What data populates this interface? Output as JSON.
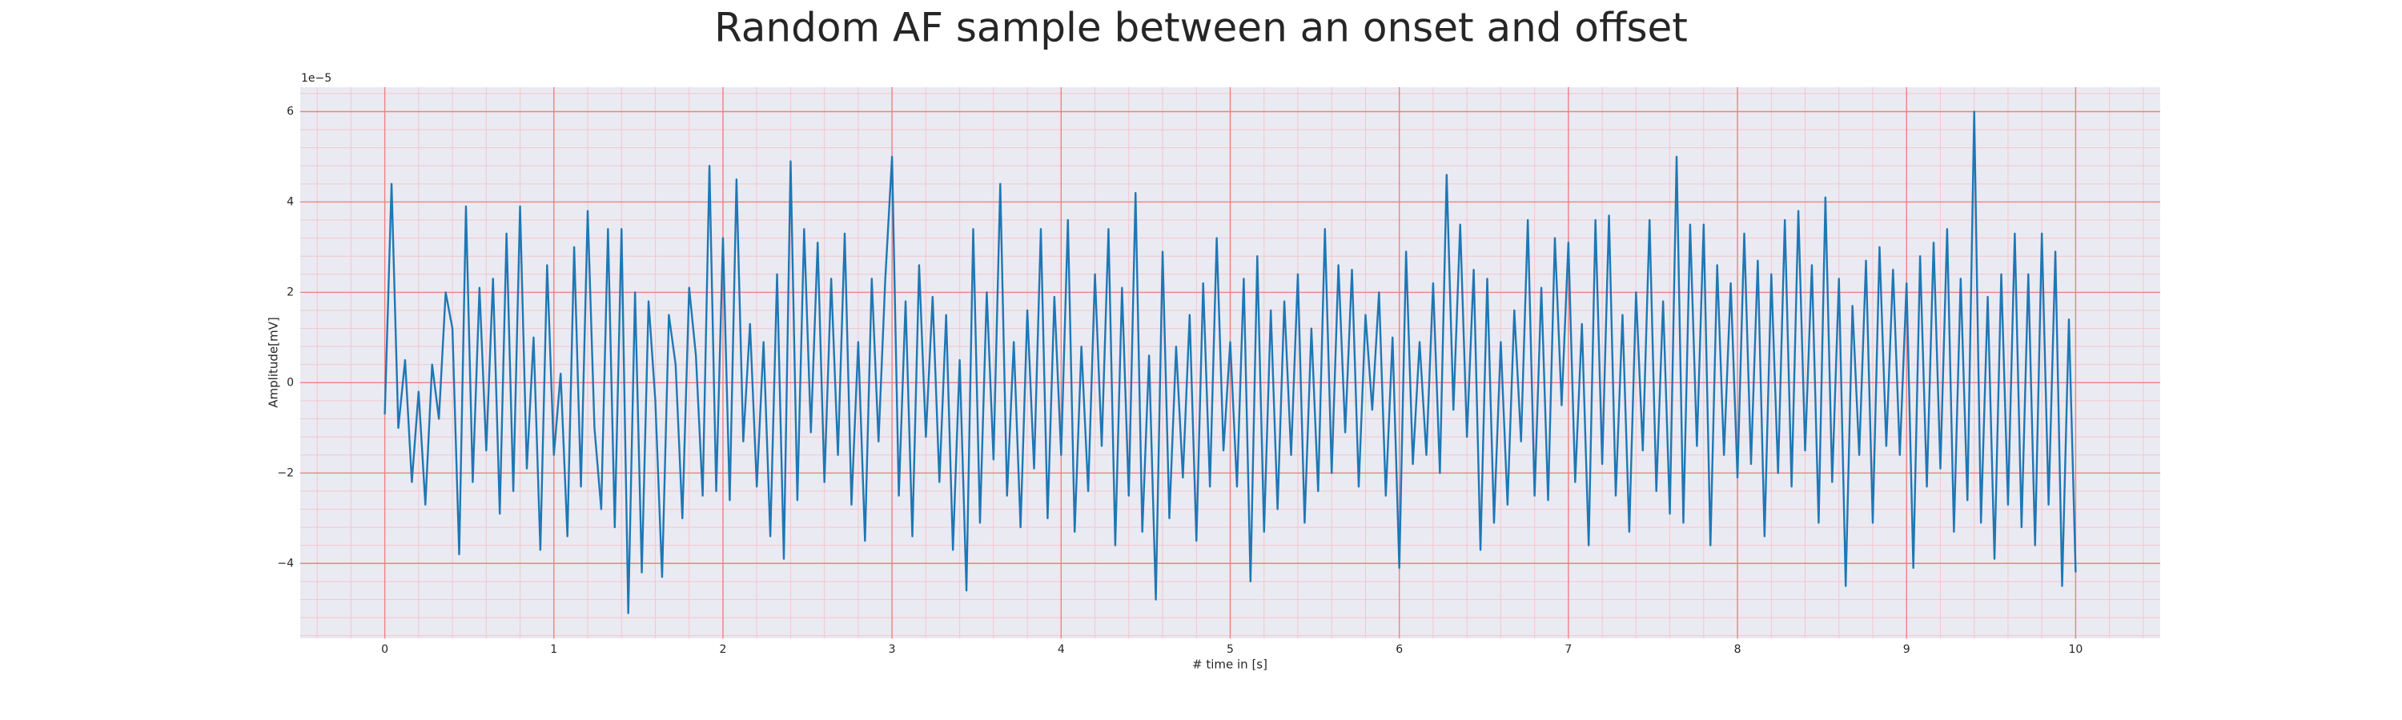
{
  "chart_data": {
    "type": "line",
    "title": "Random AF sample between an onset and offset",
    "xlabel": "# time in [s]",
    "ylabel": "Amplitude[mV]",
    "y_offset_label": "1e−5",
    "xlim": [
      -0.5,
      10.5
    ],
    "ylim": [
      -5.66,
      6.54
    ],
    "xticks": [
      0,
      1,
      2,
      3,
      4,
      5,
      6,
      7,
      8,
      9,
      10
    ],
    "yticks": [
      {
        "value": -4,
        "label": "−4"
      },
      {
        "value": -2,
        "label": "−2"
      },
      0,
      2,
      4,
      6
    ],
    "xminorticks": [
      -0.4,
      -0.2,
      0.2,
      0.4,
      0.6,
      0.8,
      1.2,
      1.4,
      1.6,
      1.8,
      2.2,
      2.4,
      2.6,
      2.8,
      3.2,
      3.4,
      3.6,
      3.8,
      4.2,
      4.4,
      4.6,
      4.8,
      5.2,
      5.4,
      5.6,
      5.8,
      6.2,
      6.4,
      6.6,
      6.8,
      7.2,
      7.4,
      7.6,
      7.8,
      8.2,
      8.4,
      8.6,
      8.8,
      9.2,
      9.4,
      9.6,
      9.8,
      10.2,
      10.4
    ],
    "yminorticks": [
      -5.6,
      -5.2,
      -4.8,
      -4.4,
      -3.6,
      -3.2,
      -2.8,
      -2.4,
      -1.6,
      -1.2,
      -0.8,
      -0.4,
      0.4,
      0.8,
      1.2,
      1.6,
      2.4,
      2.8,
      3.2,
      3.6,
      4.4,
      4.8,
      5.2,
      5.6,
      6.4
    ],
    "grid": true,
    "background": "#eaeaf2",
    "grid_color": "#f08080",
    "minor_grid_color": "#f4c6cc",
    "x": [
      0,
      0.04,
      0.08,
      0.12,
      0.16,
      0.2,
      0.24,
      0.28,
      0.32,
      0.36,
      0.4,
      0.44,
      0.48,
      0.52,
      0.56,
      0.6,
      0.64,
      0.68,
      0.72,
      0.76,
      0.8,
      0.84,
      0.88,
      0.92,
      0.96,
      1,
      1.04,
      1.08,
      1.12,
      1.16,
      1.2,
      1.24,
      1.28,
      1.32,
      1.36,
      1.4,
      1.44,
      1.48,
      1.52,
      1.56,
      1.6,
      1.64,
      1.68,
      1.72,
      1.76,
      1.8,
      1.84,
      1.88,
      1.92,
      1.96,
      2,
      2.04,
      2.08,
      2.12,
      2.16,
      2.2,
      2.24,
      2.28,
      2.32,
      2.36,
      2.4,
      2.44,
      2.48,
      2.52,
      2.56,
      2.6,
      2.64,
      2.68,
      2.72,
      2.76,
      2.8,
      2.84,
      2.88,
      2.92,
      2.96,
      3,
      3.04,
      3.08,
      3.12,
      3.16,
      3.2,
      3.24,
      3.28,
      3.32,
      3.36,
      3.4,
      3.44,
      3.48,
      3.52,
      3.56,
      3.6,
      3.64,
      3.68,
      3.72,
      3.76,
      3.8,
      3.84,
      3.88,
      3.92,
      3.96,
      4,
      4.04,
      4.08,
      4.12,
      4.16,
      4.2,
      4.24,
      4.28,
      4.32,
      4.36,
      4.4,
      4.44,
      4.48,
      4.52,
      4.56,
      4.6,
      4.64,
      4.68,
      4.72,
      4.76,
      4.8,
      4.84,
      4.88,
      4.92,
      4.96,
      5,
      5.04,
      5.08,
      5.12,
      5.16,
      5.2,
      5.24,
      5.28,
      5.32,
      5.36,
      5.4,
      5.44,
      5.48,
      5.52,
      5.56,
      5.6,
      5.64,
      5.68,
      5.72,
      5.76,
      5.8,
      5.84,
      5.88,
      5.92,
      5.96,
      6,
      6.04,
      6.08,
      6.12,
      6.16,
      6.2,
      6.24,
      6.28,
      6.32,
      6.36,
      6.4,
      6.44,
      6.48,
      6.52,
      6.56,
      6.6,
      6.64,
      6.68,
      6.72,
      6.76,
      6.8,
      6.84,
      6.88,
      6.92,
      6.96,
      7,
      7.04,
      7.08,
      7.12,
      7.16,
      7.2,
      7.24,
      7.28,
      7.32,
      7.36,
      7.4,
      7.44,
      7.48,
      7.52,
      7.56,
      7.6,
      7.64,
      7.68,
      7.72,
      7.76,
      7.8,
      7.84,
      7.88,
      7.92,
      7.96,
      8,
      8.04,
      8.08,
      8.12,
      8.16,
      8.2,
      8.24,
      8.28,
      8.32,
      8.36,
      8.4,
      8.44,
      8.48,
      8.52,
      8.56,
      8.6,
      8.64,
      8.68,
      8.72,
      8.76,
      8.8,
      8.84,
      8.88,
      8.92,
      8.96,
      9,
      9.04,
      9.08,
      9.12,
      9.16,
      9.2,
      9.24,
      9.28,
      9.32,
      9.36,
      9.4,
      9.44,
      9.48,
      9.52,
      9.56,
      9.6,
      9.64,
      9.68,
      9.72,
      9.76,
      9.8,
      9.84,
      9.88,
      9.92,
      9.96,
      10
    ],
    "series": [
      {
        "color": "#1f77b4",
        "values": [
          -0.7,
          4.4,
          -1.0,
          0.5,
          -2.2,
          -0.2,
          -2.7,
          0.4,
          -0.8,
          2.0,
          1.2,
          -3.8,
          3.9,
          -2.2,
          2.1,
          -1.5,
          2.3,
          -2.9,
          3.3,
          -2.4,
          3.9,
          -1.9,
          1.0,
          -3.7,
          2.6,
          -1.6,
          0.2,
          -3.4,
          3.0,
          -2.3,
          3.8,
          -1.0,
          -2.8,
          3.4,
          -3.2,
          3.4,
          -5.1,
          2.0,
          -4.2,
          1.8,
          -0.4,
          -4.3,
          1.5,
          0.4,
          -3.0,
          2.1,
          0.6,
          -2.5,
          4.8,
          -2.4,
          3.2,
          -2.6,
          4.5,
          -1.3,
          1.3,
          -2.3,
          0.9,
          -3.4,
          2.4,
          -3.9,
          4.9,
          -2.6,
          3.4,
          -1.1,
          3.1,
          -2.2,
          2.3,
          -1.6,
          3.3,
          -2.7,
          0.9,
          -3.5,
          2.3,
          -1.3,
          2.3,
          5.0,
          -2.5,
          1.8,
          -3.4,
          2.6,
          -1.2,
          1.9,
          -2.2,
          1.5,
          -3.7,
          0.5,
          -4.6,
          3.4,
          -3.1,
          2.0,
          -1.7,
          4.4,
          -2.5,
          0.9,
          -3.2,
          1.6,
          -1.9,
          3.4,
          -3.0,
          1.9,
          -1.6,
          3.6,
          -3.3,
          0.8,
          -2.4,
          2.4,
          -1.4,
          3.4,
          -3.6,
          2.1,
          -2.5,
          4.2,
          -3.3,
          0.6,
          -4.8,
          2.9,
          -3.0,
          0.8,
          -2.1,
          1.5,
          -3.5,
          2.2,
          -2.3,
          3.2,
          -1.5,
          0.9,
          -2.3,
          2.3,
          -4.4,
          2.8,
          -3.3,
          1.6,
          -2.8,
          1.8,
          -1.6,
          2.4,
          -3.1,
          1.2,
          -2.4,
          3.4,
          -2.0,
          2.6,
          -1.1,
          2.5,
          -2.3,
          1.5,
          -0.6,
          2.0,
          -2.5,
          1.0,
          -4.1,
          2.9,
          -1.8,
          0.9,
          -1.6,
          2.2,
          -2.0,
          4.6,
          -0.6,
          3.5,
          -1.2,
          2.5,
          -3.7,
          2.3,
          -3.1,
          0.9,
          -2.7,
          1.6,
          -1.3,
          3.6,
          -2.5,
          2.1,
          -2.6,
          3.2,
          -0.5,
          3.1,
          -2.2,
          1.3,
          -3.6,
          3.6,
          -1.8,
          3.7,
          -2.5,
          1.5,
          -3.3,
          2.0,
          -1.5,
          3.6,
          -2.4,
          1.8,
          -2.9,
          5.0,
          -3.1,
          3.5,
          -1.4,
          3.5,
          -3.6,
          2.6,
          -1.6,
          2.2,
          -2.1,
          3.3,
          -1.8,
          2.7,
          -3.4,
          2.4,
          -2.0,
          3.6,
          -2.3,
          3.8,
          -1.5,
          2.6,
          -3.1,
          4.1,
          -2.2,
          2.3,
          -4.5,
          1.7,
          -1.6,
          2.7,
          -3.1,
          3.0,
          -1.4,
          2.5,
          -1.6,
          2.2,
          -4.1,
          2.8,
          -2.3,
          3.1,
          -1.9,
          3.4,
          -3.3,
          2.3,
          -2.6,
          6.0,
          -3.1,
          1.9,
          -3.9,
          2.4,
          -2.7,
          3.3,
          -3.2,
          2.4,
          -3.6,
          3.3,
          -2.7,
          2.9,
          -4.5,
          1.4,
          -4.2
        ]
      }
    ]
  }
}
